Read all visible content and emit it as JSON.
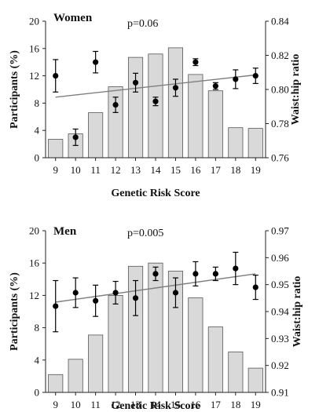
{
  "colors": {
    "bar_fill": "#d9d9d9",
    "bar_stroke": "#555555",
    "marker": "#000000",
    "trend": "#7f7f7f"
  },
  "chart_data": [
    {
      "type": "bar",
      "panel": "women",
      "title": "Women",
      "annotation": "p=0.06",
      "xlabel": "Genetic Risk Score",
      "ylabel_left": "Participants (%)",
      "ylabel_right": "Waist:hip ratio",
      "categories": [
        "9",
        "10",
        "11",
        "12",
        "13",
        "14",
        "15",
        "16",
        "17",
        "18",
        "19"
      ],
      "ylim_left": [
        0,
        20
      ],
      "yticks_left": [
        "0",
        "4",
        "8",
        "12",
        "16",
        "20"
      ],
      "ylim_right": [
        0.76,
        0.84
      ],
      "yticks_right": [
        "0.76",
        "0.78",
        "0.80",
        "0.82",
        "0.84"
      ],
      "series": [
        {
          "kind": "bar",
          "axis": "left",
          "values": [
            2.7,
            3.5,
            6.6,
            10.4,
            14.7,
            15.2,
            16.1,
            12.2,
            9.8,
            4.4,
            4.3
          ]
        },
        {
          "kind": "points",
          "axis": "right",
          "values": [
            0.808,
            0.772,
            0.816,
            0.791,
            0.804,
            0.793,
            0.801,
            0.816,
            0.802,
            0.806,
            0.808
          ],
          "error": [
            0.0095,
            0.0048,
            0.0063,
            0.0045,
            0.0055,
            0.0025,
            0.005,
            0.002,
            0.002,
            0.0055,
            0.0045
          ]
        },
        {
          "kind": "trend",
          "axis": "right",
          "start": 0.7955,
          "end": 0.8085
        }
      ]
    },
    {
      "type": "bar",
      "panel": "men",
      "title": "Men",
      "annotation": "p=0.005",
      "xlabel": "Genetic Risk Score",
      "ylabel_left": "Participants (%)",
      "ylabel_right": "Waist:hip ratio",
      "categories": [
        "9",
        "10",
        "11",
        "12",
        "13",
        "14",
        "15",
        "16",
        "17",
        "18",
        "19"
      ],
      "ylim_left": [
        0,
        20
      ],
      "yticks_left": [
        "0",
        "4",
        "8",
        "12",
        "16",
        "20"
      ],
      "ylim_right": [
        0.91,
        0.97
      ],
      "yticks_right": [
        "0.91",
        "0.92",
        "0.93",
        "0.94",
        "0.95",
        "0.96",
        "0.97"
      ],
      "series": [
        {
          "kind": "bar",
          "axis": "left",
          "values": [
            2.2,
            4.1,
            7.1,
            12.0,
            15.6,
            16.0,
            15.0,
            11.7,
            8.1,
            5.0,
            3.0
          ]
        },
        {
          "kind": "points",
          "axis": "right",
          "values": [
            0.942,
            0.947,
            0.944,
            0.947,
            0.945,
            0.954,
            0.947,
            0.954,
            0.954,
            0.956,
            0.949
          ],
          "error": [
            0.0095,
            0.0055,
            0.0058,
            0.0042,
            0.0065,
            0.0025,
            0.0055,
            0.0045,
            0.0025,
            0.006,
            0.0045
          ]
        },
        {
          "kind": "trend",
          "axis": "right",
          "start": 0.9435,
          "end": 0.954
        }
      ]
    }
  ]
}
